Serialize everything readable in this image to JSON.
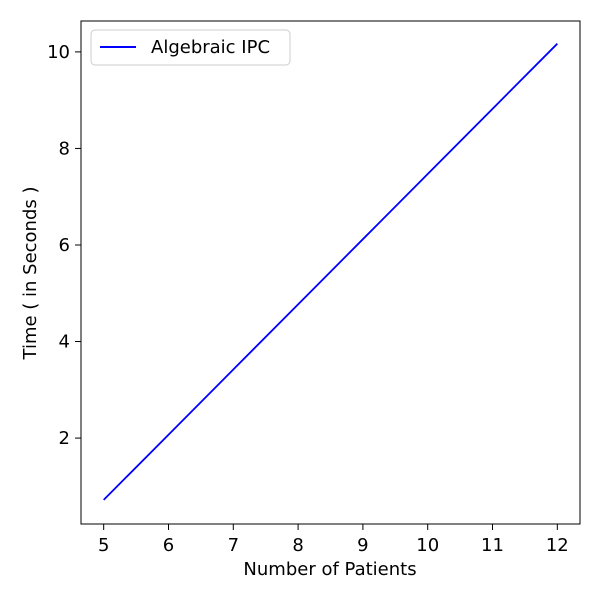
{
  "chart_data": {
    "type": "line",
    "title": "",
    "xlabel": "Number of Patients",
    "ylabel": "Time ( in Seconds )",
    "xlim": [
      4.65,
      12.35
    ],
    "ylim": [
      0.22,
      10.64
    ],
    "x_ticks": [
      5,
      6,
      7,
      8,
      9,
      10,
      11,
      12
    ],
    "y_ticks": [
      2,
      4,
      6,
      8,
      10
    ],
    "grid": false,
    "legend_position": "top-left",
    "series": [
      {
        "name": "Algebraic IPC",
        "color": "#0000ff",
        "x": [
          5,
          6,
          7,
          8,
          9,
          10,
          11,
          12
        ],
        "y": [
          0.72,
          2.07,
          3.42,
          4.77,
          6.12,
          7.47,
          8.82,
          10.17
        ]
      }
    ]
  }
}
